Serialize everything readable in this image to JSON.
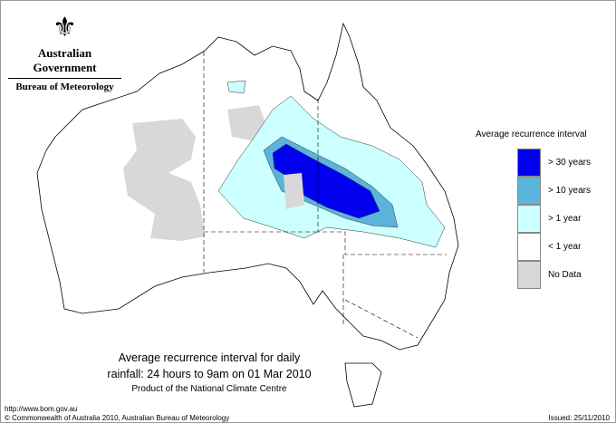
{
  "header": {
    "org": "Australian Government",
    "agency": "Bureau of Meteorology",
    "logo_icon": "coat-of-arms"
  },
  "map": {
    "title_line1": "Average recurrence interval for daily",
    "title_line2": "rainfall: 24 hours to 9am on 01 Mar 2010",
    "subtitle": "Product of the National Climate Centre"
  },
  "legend": {
    "title": "Average recurrence interval",
    "items": [
      {
        "label": "> 30 years",
        "color": "#0000ee"
      },
      {
        "label": "> 10 years",
        "color": "#5ab4dc"
      },
      {
        "label": "> 1 year",
        "color": "#ccffff"
      },
      {
        "label": "< 1 year",
        "color": "#ffffff"
      },
      {
        "label": "No Data",
        "color": "#d8d8d8"
      }
    ]
  },
  "footer": {
    "url": "http://www.bom.gov.au",
    "copyright": "© Commonwealth of Australia 2010, Australian Bureau of Meteorology",
    "issued": "Issued: 25/11/2010"
  }
}
